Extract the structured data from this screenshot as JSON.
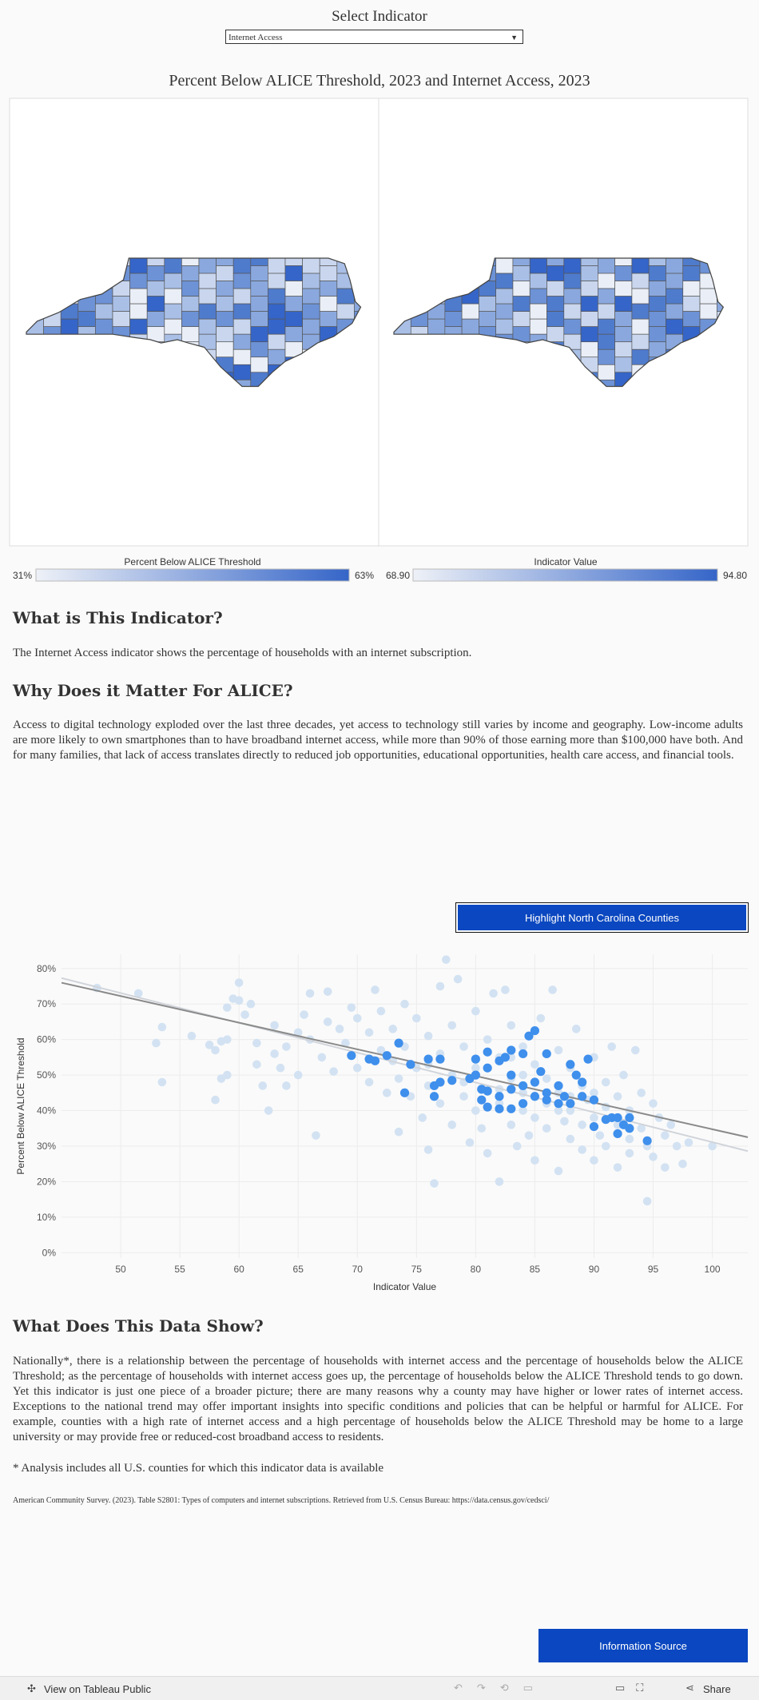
{
  "header": {
    "label": "Select Indicator",
    "dropdown": "Internet Access"
  },
  "maps": {
    "title": "Percent Below ALICE Threshold, 2023 and Internet Access, 2023",
    "legends": [
      {
        "title": "Percent Below ALICE Threshold",
        "min": {
          "value": 31,
          "label": "31%"
        },
        "max": {
          "value": 63,
          "label": "63%"
        },
        "colors": [
          "#eef1f7",
          "#3565c8"
        ]
      },
      {
        "title": "Indicator Value",
        "min": {
          "value": 68.9,
          "label": "68.90"
        },
        "max": {
          "value": 94.8,
          "label": "94.80"
        },
        "colors": [
          "#eef1f7",
          "#3565c8"
        ]
      }
    ]
  },
  "sections": [
    {
      "heading": "What is This Indicator?",
      "paragraphs": [
        "The Internet Access indicator shows the percentage of households with an internet subscription."
      ]
    },
    {
      "heading": "Why Does it Matter For ALICE?",
      "paragraphs": [
        "Access to digital technology exploded over the last three decades, yet access to technology still varies by income and geography. Low-income adults are more likely to own smartphones than to have broadband internet access, while more than 90% of those earning more than $100,000 have both. And for many families, that lack of access translates directly to reduced job opportunities, educational opportunities, health care access, and financial tools."
      ]
    },
    {
      "heading": "What Does This Data Show?",
      "paragraphs": [
        "Nationally*, there is a relationship between the percentage of households with internet access and the percentage of households below the ALICE Threshold; as the percentage of households with internet access goes up, the percentage of households below the ALICE Threshold tends to go down. Yet this indicator is just one piece of a broader picture; there are many reasons why a county may have higher or lower rates of internet access. Exceptions to the national trend may offer important insights into specific conditions and policies that can be helpful or harmful for ALICE. For example, counties with a high rate of internet access and a high percentage of households below the ALICE Threshold may be home to a large university or may provide free or reduced-cost broadband access to residents.",
        "* Analysis includes all U.S. counties for which this indicator data is available"
      ]
    }
  ],
  "controls": {
    "highlight_button": "Highlight North Carolina Counties",
    "info_button": "Information Source"
  },
  "source": "American Community Survey. (2023). Table S2801: Types of computers and internet subscriptions. Retrieved from U.S. Census Bureau: https://data.census.gov/cedsci/",
  "footer": {
    "link": "View on Tableau Public",
    "share": "Share"
  },
  "chart_data": {
    "type": "scatter",
    "x_label": "Indicator Value",
    "y_label": "Percent Below ALICE Threshold",
    "xlim": [
      45,
      103
    ],
    "ylim": [
      -1.5,
      84
    ],
    "xticks": [
      50,
      55,
      60,
      65,
      70,
      75,
      80,
      85,
      90,
      95,
      100
    ],
    "yticks": [
      {
        "value": 0,
        "label": "0%"
      },
      {
        "value": 10,
        "label": "10%"
      },
      {
        "value": 20,
        "label": "20%"
      },
      {
        "value": 30,
        "label": "30%"
      },
      {
        "value": 40,
        "label": "40%"
      },
      {
        "value": 50,
        "label": "50%"
      },
      {
        "value": 60,
        "label": "60%"
      },
      {
        "value": 70,
        "label": "70%"
      },
      {
        "value": 80,
        "label": "80%"
      }
    ],
    "grid": true,
    "series": [
      {
        "color": "#d3e2f2",
        "x": [
          48,
          51.5,
          53.5,
          53,
          53.5,
          56,
          57.5,
          58,
          58.5,
          58,
          58.5,
          59,
          59,
          59,
          59.5,
          60,
          60,
          60.5,
          61,
          61.5,
          61.5,
          62,
          62.5,
          63,
          63,
          63.5,
          64,
          64,
          65,
          65,
          65.5,
          66,
          66,
          66.5,
          67,
          67.5,
          67.5,
          68,
          68.5,
          69,
          69.5,
          70,
          70,
          71,
          71,
          71.5,
          72,
          72,
          72.5,
          73,
          73,
          73.5,
          73.5,
          74,
          74,
          74.5,
          75,
          75,
          75.5,
          76,
          76,
          76,
          76.5,
          77,
          77,
          77,
          77.5,
          78,
          78,
          78,
          78.5,
          79,
          79,
          79.5,
          80,
          80,
          80,
          80.5,
          81,
          81,
          81,
          81.5,
          82,
          82,
          82,
          82.5,
          83,
          83,
          83,
          83.5,
          84,
          84,
          84,
          84.5,
          85,
          85,
          85,
          85.5,
          86,
          86,
          86,
          86.5,
          87,
          87,
          87,
          87.5,
          88,
          88,
          88,
          88.5,
          89,
          89,
          89,
          89.5,
          90,
          90,
          90,
          90.5,
          91,
          91,
          91,
          91.5,
          92,
          92,
          92,
          92.5,
          93,
          93,
          93,
          93.5,
          94,
          94,
          94.5,
          94.5,
          95,
          95,
          95.5,
          96,
          96,
          96.5,
          97,
          97.5,
          98,
          100,
          83,
          86,
          84,
          88,
          85,
          90,
          87,
          82,
          79,
          76
        ],
        "values": [
          74.5,
          73,
          63.5,
          59,
          48,
          61,
          58.5,
          57,
          59.5,
          43,
          49,
          50,
          60,
          69,
          71.5,
          76,
          71,
          67,
          70,
          59,
          53,
          47,
          40,
          64,
          56,
          52,
          47,
          58,
          62,
          50,
          67,
          73,
          60,
          33,
          55,
          73.5,
          65,
          51,
          63,
          59,
          69,
          52,
          66,
          48,
          62,
          74,
          68,
          57,
          45,
          63,
          54,
          49,
          34,
          70,
          58,
          44,
          66,
          52,
          38,
          61,
          47,
          29,
          19.5,
          75,
          56,
          42,
          82.5,
          64,
          50,
          36,
          77,
          58,
          44,
          31,
          68,
          52,
          40,
          35,
          60,
          46,
          28,
          73,
          55,
          42,
          20,
          74,
          64,
          49,
          36,
          30,
          58,
          45,
          40,
          33,
          53,
          38,
          26,
          66,
          49,
          42,
          35,
          74,
          57,
          45,
          23,
          37,
          52,
          40,
          32,
          63,
          47,
          36,
          29,
          43,
          55,
          38,
          26,
          33,
          48,
          41,
          30,
          58,
          44,
          36,
          24,
          50,
          40,
          32,
          28,
          57,
          45,
          35,
          14.5,
          30,
          42,
          27,
          38,
          33,
          24,
          36,
          30,
          25,
          31,
          30,
          55,
          45,
          50,
          44,
          48,
          45,
          40,
          46,
          48,
          53
        ]
      },
      {
        "color": "#3f8fec",
        "x": [
          69.5,
          71,
          71.5,
          73.5,
          72.5,
          74,
          74.5,
          76,
          77,
          76.5,
          76.5,
          77,
          78,
          79.5,
          80,
          80,
          80.5,
          80.5,
          81,
          81,
          81,
          81,
          82,
          82,
          82,
          82.5,
          83,
          83,
          83,
          83,
          84,
          84,
          84,
          84.5,
          85,
          85,
          85,
          85.5,
          86,
          86,
          86,
          87,
          87,
          87.5,
          88,
          88,
          88.5,
          89,
          89,
          89.5,
          90,
          90,
          91,
          91.5,
          92,
          92,
          92.5,
          93,
          93,
          94.5
        ],
        "values": [
          55.5,
          54.5,
          54,
          59,
          55.5,
          45,
          53,
          54.5,
          54.5,
          47,
          44,
          48,
          48.5,
          49,
          54.5,
          50,
          46,
          43,
          56.5,
          52,
          45.5,
          41,
          54,
          44,
          40.5,
          55,
          57,
          50,
          46,
          40.5,
          47,
          42,
          56,
          61,
          62.5,
          48,
          44,
          51,
          45,
          43,
          56,
          47,
          42,
          44,
          53,
          42,
          50,
          48,
          44,
          54.5,
          43,
          35.5,
          37.5,
          38,
          33.5,
          38,
          36,
          35,
          38,
          31.5
        ]
      }
    ],
    "trend_lines": [
      {
        "color": "#d0d4da",
        "x": [
          45,
          103
        ],
        "values": [
          77.3,
          28.6
        ]
      },
      {
        "color": "#8a8a8a",
        "x": [
          45,
          103
        ],
        "values": [
          76,
          32.5
        ]
      }
    ]
  }
}
